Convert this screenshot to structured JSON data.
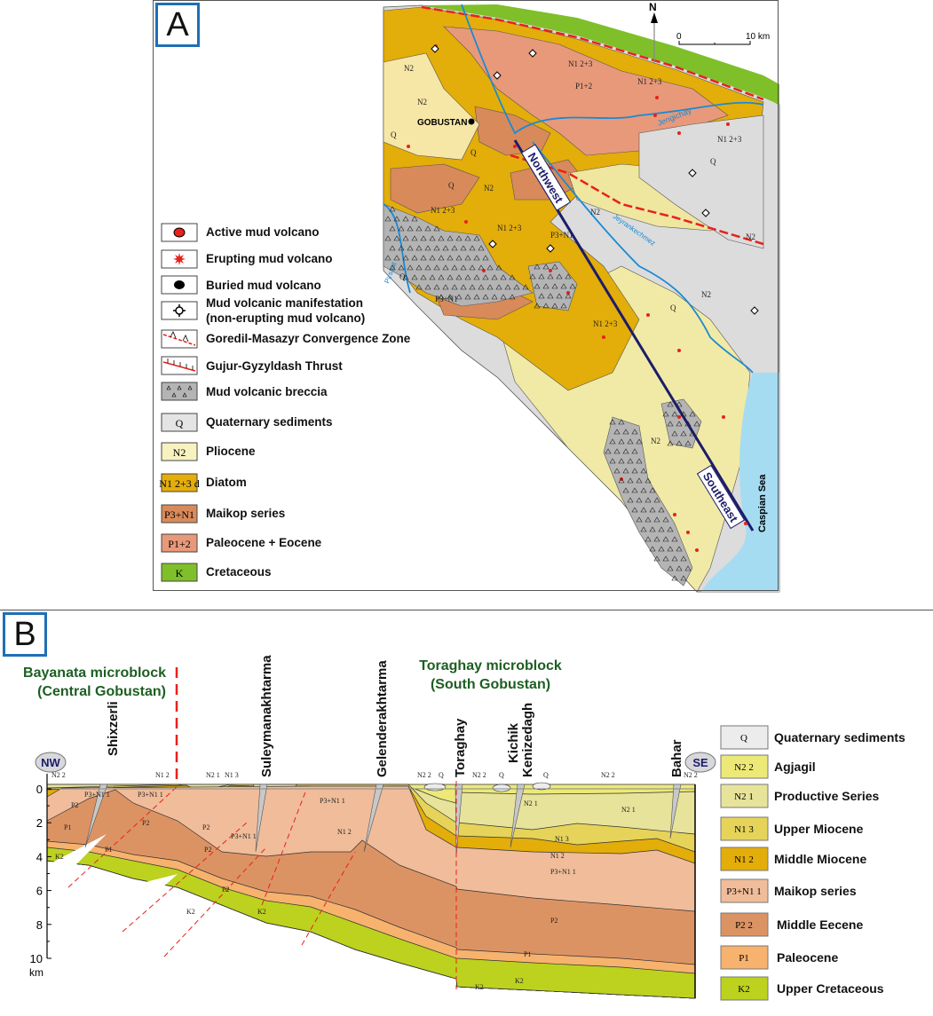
{
  "panel_a": {
    "tag": "A",
    "north_label": "N",
    "scale": {
      "zero": "0",
      "end": "10 km"
    },
    "place": "GOBUSTAN",
    "profile_start": "Northwest",
    "profile_end": "Southeast",
    "rivers": [
      "Jengichay",
      "Jeyrankechmez",
      "Pirsaat"
    ],
    "sea": "Caspian Sea",
    "unit_labels": [
      "N2",
      "N1 2+3",
      "P1+2",
      "N1 2+3",
      "N1 2+3",
      "Q",
      "Q",
      "Q",
      "N2",
      "N2",
      "N1 2+3",
      "N1 2+3",
      "P3+N1",
      "N2",
      "Q",
      "Q",
      "N2",
      "N2",
      "N1 2+3",
      "P3+N1",
      "Q",
      "N2"
    ],
    "legend": [
      {
        "symbol": "active-mud-volcano",
        "label": "Active mud volcano"
      },
      {
        "symbol": "erupting-mud-volcano",
        "label": "Erupting mud volcano"
      },
      {
        "symbol": "buried-mud-volcano",
        "label": "Buried mud volcano"
      },
      {
        "symbol": "mud-volcanic-manifestation",
        "label": "Mud volcanic manifestation",
        "label2": "(non-erupting mud volcano)"
      },
      {
        "symbol": "convergence-zone-line",
        "label": "Goredil-Masazyr Convergence Zone"
      },
      {
        "symbol": "thrust-line",
        "label": "Gujur-Gyzyldash Thrust"
      },
      {
        "symbol": "breccia",
        "label": "Mud volcanic breccia",
        "color": "#b4b4b4"
      },
      {
        "symbol": "Q",
        "label": "Quaternary sediments",
        "color": "#e4e4e4"
      },
      {
        "symbol": "N2",
        "label": "Pliocene",
        "color": "#f7f2bf"
      },
      {
        "symbol": "N1 2+3 d",
        "label": "Diatom",
        "color": "#e3ad0a"
      },
      {
        "symbol": "P3+N1",
        "label": "Maikop series",
        "color": "#d98a5a"
      },
      {
        "symbol": "P1+2",
        "label": "Paleocene + Eocene",
        "color": "#e8997a"
      },
      {
        "symbol": "K",
        "label": "Cretaceous",
        "color": "#7fbf2a"
      }
    ]
  },
  "panel_b": {
    "tag": "B",
    "blocks": [
      {
        "line1": "Bayanata microblock",
        "line2": "(Central Gobustan)"
      },
      {
        "line1": "Toraghay microblock",
        "line2": "(South Gobustan)"
      }
    ],
    "ends": {
      "left": "NW",
      "right": "SE"
    },
    "structures": [
      "Shixzerli",
      "Suleymanakhtarma",
      "Gelenderakhtarma",
      "Toraghay",
      "Kichik",
      "Kenizedagh",
      "Bahar"
    ],
    "depth_axis": {
      "ticks": [
        "0",
        "2",
        "4",
        "6",
        "8",
        "10"
      ],
      "unit": "km",
      "range_km": [
        0,
        10
      ]
    },
    "formation_labels": [
      "N2 2",
      "N1 2",
      "N2 1",
      "N1 3",
      "N2 2",
      "Q",
      "N2 2",
      "Q",
      "Q",
      "N2 2",
      "N2 2",
      "P3+N1 1",
      "P3+N1 1",
      "P2",
      "P2",
      "P2",
      "P3+N1 1",
      "P3+N1 1",
      "N1 2",
      "P2",
      "P2",
      "P1",
      "P1",
      "K2",
      "K2",
      "K2",
      "N2 1",
      "N2 1",
      "N1 3",
      "N1 2",
      "P3+N1 1",
      "P2",
      "P1",
      "K2",
      "K2"
    ],
    "legend": [
      {
        "symbol": "Q",
        "label": "Quaternary sediments",
        "color": "#ececec"
      },
      {
        "symbol": "N2 2",
        "label": "Agjagil",
        "color": "#ece978"
      },
      {
        "symbol": "N2 1",
        "label": "Productive Series",
        "color": "#e7e39a"
      },
      {
        "symbol": "N1 3",
        "label": "Upper Miocene",
        "color": "#e6d35a"
      },
      {
        "symbol": "N1 2",
        "label": "Middle Miocene",
        "color": "#e3ad0a"
      },
      {
        "symbol": "P3+N1 1",
        "label": "Maikop series",
        "color": "#f0bc9a"
      },
      {
        "symbol": "P2 2",
        "label": "Middle Eecene",
        "color": "#dc9363"
      },
      {
        "symbol": "P1",
        "label": "Paleocene",
        "color": "#f7b26e"
      },
      {
        "symbol": "K2",
        "label": "Upper Cretaceous",
        "color": "#bcd21e"
      }
    ]
  },
  "colors": {
    "fault": "#e8211b",
    "river": "#1a8ad4",
    "profile_line": "#1c1c6a",
    "sea": "#a6dcf2",
    "block_title": "#1d5e22"
  }
}
